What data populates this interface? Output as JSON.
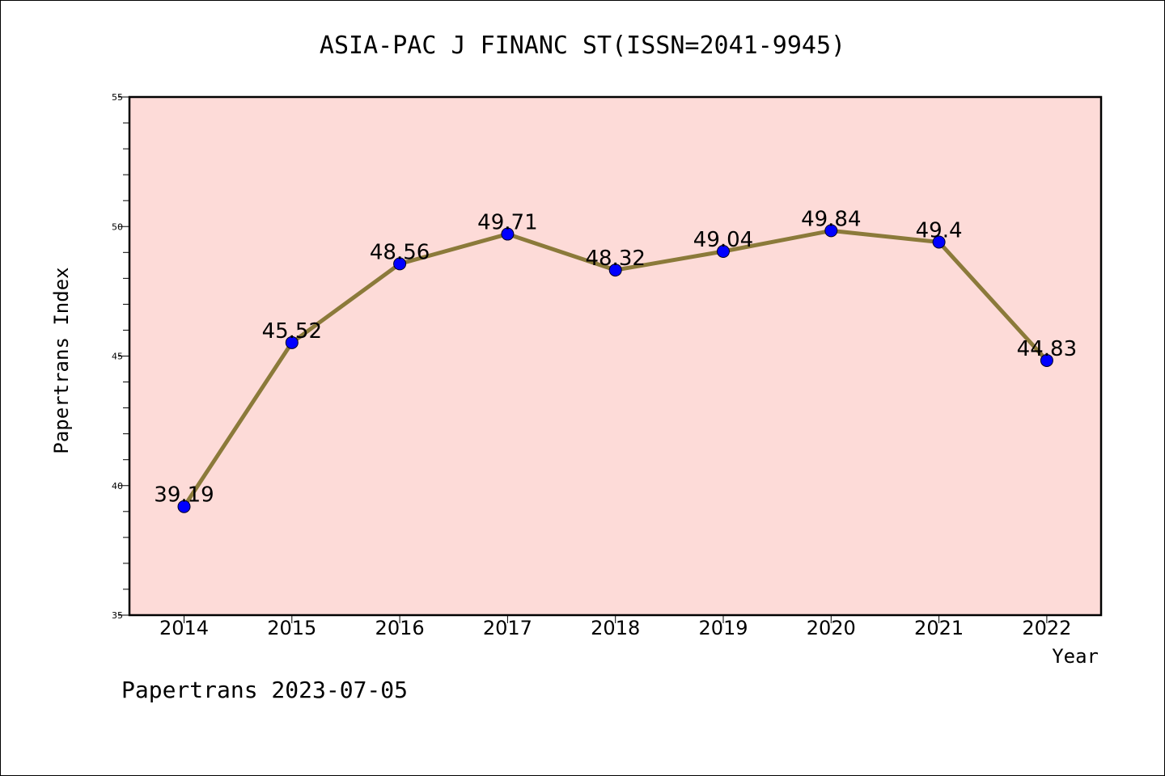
{
  "chart_data": {
    "type": "line",
    "title": "ASIA-PAC J FINANC ST(ISSN=2041-9945)",
    "xlabel": "Year",
    "ylabel": "Papertrans Index",
    "categories": [
      "2014",
      "2015",
      "2016",
      "2017",
      "2018",
      "2019",
      "2020",
      "2021",
      "2022"
    ],
    "values": [
      39.19,
      45.52,
      48.56,
      49.71,
      48.32,
      49.04,
      49.84,
      49.4,
      44.83
    ],
    "data_labels": [
      "39.19",
      "45.52",
      "48.56",
      "49.71",
      "48.32",
      "49.04",
      "49.84",
      "49.4",
      "44.83"
    ],
    "ylim": [
      35,
      55
    ],
    "yticks": [
      "35",
      "40",
      "45",
      "50",
      "55"
    ],
    "grid": false,
    "colors": {
      "plot_background": "#fddbd8",
      "line": "#8b7a3a",
      "marker": "#0000ff"
    }
  },
  "footer": "Papertrans 2023-07-05"
}
